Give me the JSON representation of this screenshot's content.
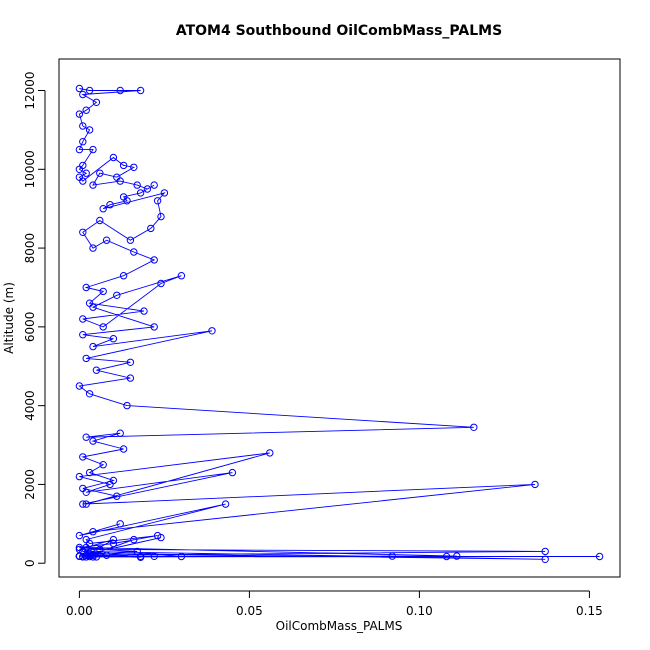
{
  "chart_data": {
    "type": "line",
    "title": "ATOM4 Southbound OilCombMass_PALMS",
    "xlabel": "OilCombMass_PALMS",
    "ylabel": "Altitude (m)",
    "xlim": [
      -0.006,
      0.159
    ],
    "ylim": [
      -350,
      12800
    ],
    "x_ticks": [
      0.0,
      0.05,
      0.1,
      0.15
    ],
    "x_tick_labels": [
      "0.00",
      "0.05",
      "0.10",
      "0.15"
    ],
    "y_ticks": [
      0,
      2000,
      4000,
      6000,
      8000,
      10000,
      12000
    ],
    "y_tick_labels": [
      "0",
      "2000",
      "4000",
      "6000",
      "8000",
      "10000",
      "12000"
    ],
    "grid": false,
    "series_color": "#0000ff",
    "marker": "open-circle",
    "series": [
      {
        "x": [
          0.0,
          0.003,
          0.012,
          0.018,
          0.001,
          0.005,
          0.002,
          0.0,
          0.001,
          0.003,
          0.001,
          0.0,
          0.004,
          0.001,
          0.0,
          0.002,
          0.0,
          0.001,
          0.01,
          0.013,
          0.016,
          0.011,
          0.006,
          0.004,
          0.012,
          0.017,
          0.02,
          0.022,
          0.018,
          0.013,
          0.014,
          0.009,
          0.007,
          0.025,
          0.023,
          0.024,
          0.021,
          0.015,
          0.006,
          0.001,
          0.004,
          0.008,
          0.016,
          0.022,
          0.013,
          0.002,
          0.007,
          0.003,
          0.019,
          0.001,
          0.007,
          0.024,
          0.03,
          0.011,
          0.004,
          0.022,
          0.001,
          0.01,
          0.004,
          0.039,
          0.002,
          0.015,
          0.005,
          0.015,
          0.0,
          0.003,
          0.014,
          0.116,
          0.002,
          0.012,
          0.004,
          0.013,
          0.001,
          0.007,
          0.003,
          0.01,
          0.001,
          0.011,
          0.002,
          0.056,
          0.0,
          0.009,
          0.002,
          0.045,
          0.001,
          0.134,
          0.004,
          0.012,
          0.0,
          0.043,
          0.002,
          0.003,
          0.023,
          0.01,
          0.0,
          0.006,
          0.017,
          0.004,
          0.0,
          0.024,
          0.003,
          0.137,
          0.001,
          0.018,
          0.002,
          0.01,
          0.0,
          0.137,
          0.003,
          0.016,
          0.002,
          0.153,
          0.0,
          0.108,
          0.004,
          0.092,
          0.001,
          0.111,
          0.002,
          0.03,
          0.0,
          0.022,
          0.005,
          0.018,
          0.0,
          0.003,
          0.001,
          0.008,
          0.0
        ],
        "y": [
          12050,
          12000,
          12000,
          12000,
          11900,
          11700,
          11500,
          11400,
          11100,
          11000,
          10700,
          10500,
          10500,
          10100,
          10000,
          9900,
          9800,
          9700,
          10300,
          10100,
          10050,
          9800,
          9900,
          9600,
          9700,
          9600,
          9500,
          9600,
          9400,
          9300,
          9200,
          9100,
          9000,
          9400,
          9200,
          8800,
          8500,
          8200,
          8700,
          8400,
          8000,
          8200,
          7900,
          7700,
          7300,
          7000,
          6900,
          6600,
          6400,
          6200,
          6000,
          7100,
          7300,
          6800,
          6500,
          6000,
          5800,
          5700,
          5500,
          5900,
          5200,
          5100,
          4900,
          4700,
          4500,
          4300,
          4000,
          3450,
          3200,
          3300,
          3100,
          2900,
          2700,
          2500,
          2300,
          2100,
          1900,
          1700,
          1500,
          2800,
          2200,
          2000,
          1800,
          2300,
          1500,
          2000,
          800,
          1000,
          700,
          1500,
          600,
          500,
          700,
          500,
          400,
          350,
          300,
          200,
          180,
          650,
          250,
          100,
          300,
          150,
          200,
          600,
          350,
          300,
          200,
          600,
          160,
          170,
          180,
          170,
          160,
          180,
          170,
          180,
          400,
          170,
          180,
          175,
          160,
          175,
          180,
          170,
          160,
          200,
          175
        ]
      }
    ]
  }
}
